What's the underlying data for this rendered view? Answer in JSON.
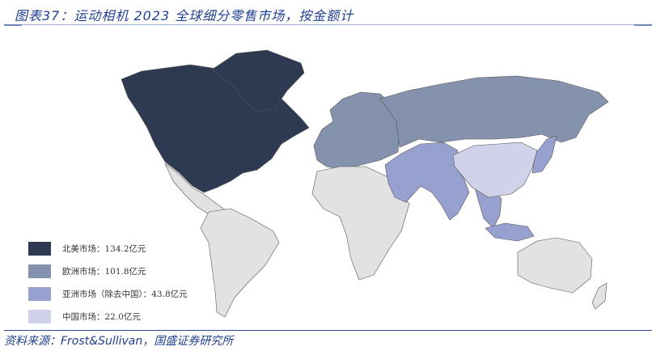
{
  "title": "图表37：运动相机 2023 全球细分零售市场，按金额计",
  "source": "资料来源：Frost&Sullivan，国盛证券研究所",
  "legend": [
    {
      "label": "北美市场：134.2亿元",
      "color": "#2e3a52"
    },
    {
      "label": "欧洲市场：101.8亿元",
      "color": "#8592ad"
    },
    {
      "label": "亚洲市场（除去中国）：43.8亿元",
      "color": "#97a1d0"
    },
    {
      "label": "中国市场：22.0亿元",
      "color": "#cfd2e9"
    }
  ],
  "map": {
    "regions": [
      {
        "name": "北美",
        "value": 134.2,
        "unit": "亿元",
        "color": "#2e3a52"
      },
      {
        "name": "欧洲",
        "value": 101.8,
        "unit": "亿元",
        "color": "#8592ad"
      },
      {
        "name": "亚洲（除去中国）",
        "value": 43.8,
        "unit": "亿元",
        "color": "#97a1d0"
      },
      {
        "name": "中国",
        "value": 22.0,
        "unit": "亿元",
        "color": "#cfd2e9"
      }
    ],
    "other_color": "#e2e2e2"
  }
}
